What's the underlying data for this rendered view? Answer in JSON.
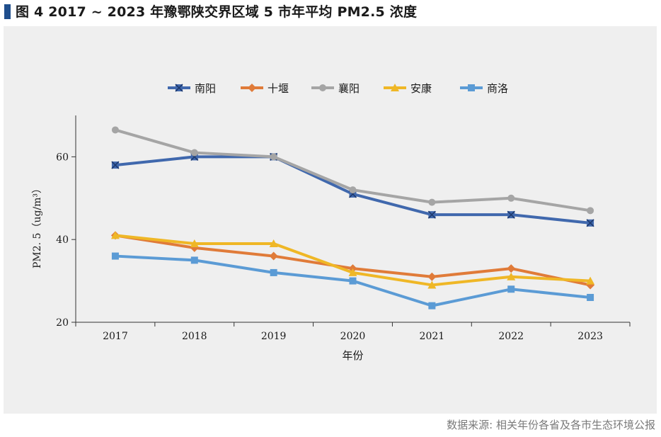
{
  "figure": {
    "title": "图 4   2017 ~ 2023 年豫鄂陕交界区域 5 市年平均 PM2.5 浓度",
    "source": "数据来源: 相关年份各省及各市生态环境公报"
  },
  "chart_data": {
    "type": "line",
    "title": "",
    "xlabel": "年份",
    "ylabel": "PM2. 5（ug/m³）",
    "categories": [
      "2017",
      "2018",
      "2019",
      "2020",
      "2021",
      "2022",
      "2023"
    ],
    "ylim": [
      20,
      70
    ],
    "yticks": [
      20,
      40,
      60
    ],
    "grid": false,
    "legend_position": "top",
    "series": [
      {
        "name": "南阳",
        "color": "#4068ad",
        "marker": "asterisk",
        "values": [
          58,
          60,
          60,
          51,
          46,
          46,
          44
        ]
      },
      {
        "name": "十堰",
        "color": "#e07b39",
        "marker": "diamond",
        "values": [
          41,
          38,
          36,
          33,
          31,
          33,
          29
        ]
      },
      {
        "name": "襄阳",
        "color": "#a5a5a5",
        "marker": "circle",
        "values": [
          66.5,
          61,
          60,
          52,
          49,
          50,
          47
        ]
      },
      {
        "name": "安康",
        "color": "#efb726",
        "marker": "triangle",
        "values": [
          41,
          39,
          39,
          32,
          29,
          31,
          30
        ]
      },
      {
        "name": "商洛",
        "color": "#5b9bd5",
        "marker": "square",
        "values": [
          36,
          35,
          32,
          30,
          24,
          28,
          26
        ]
      }
    ]
  }
}
